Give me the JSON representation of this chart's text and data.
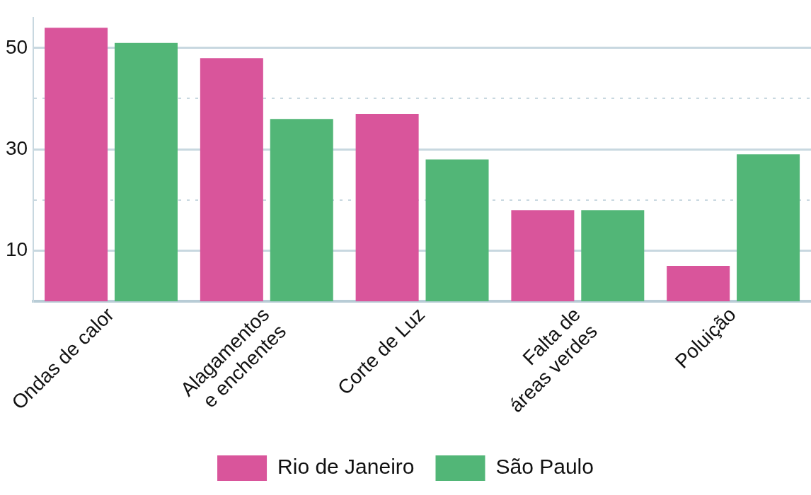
{
  "chart_data": {
    "type": "bar",
    "categories": [
      "Ondas de calor",
      "Alagamentos e enchentes",
      "Corte de Luz",
      "Falta de áreas verdes",
      "Poluição"
    ],
    "series": [
      {
        "name": "Rio de Janeiro",
        "color": "#d9559b",
        "values": [
          54,
          48,
          37,
          18,
          7
        ]
      },
      {
        "name": "São Paulo",
        "color": "#52b677",
        "values": [
          51,
          36,
          28,
          18,
          29
        ]
      }
    ],
    "ylim": [
      0,
      56
    ],
    "yticks": [
      10,
      {
        "value": 20,
        "label": null
      },
      30,
      {
        "value": 40,
        "label": null
      },
      50
    ],
    "grid": "y",
    "legend": "bottom"
  }
}
